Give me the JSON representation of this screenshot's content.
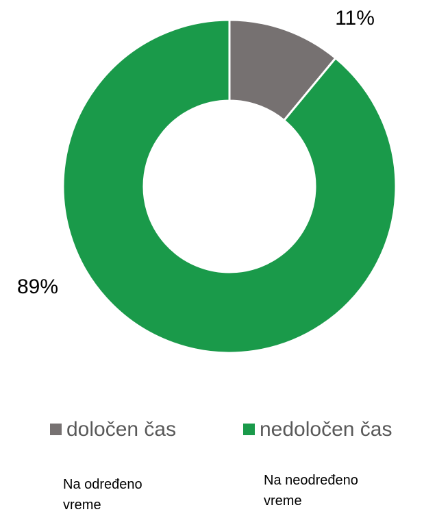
{
  "chart_data": {
    "type": "donut",
    "categories": [
      "določen čas",
      "nedoločen čas"
    ],
    "values": [
      11,
      89
    ],
    "value_labels": [
      "11%",
      "89%"
    ],
    "colors": [
      "#767171",
      "#1a9a4a"
    ],
    "legend": "bottom",
    "annotations": [
      "Na određeno vreme",
      "Na neodređeno vreme"
    ]
  }
}
